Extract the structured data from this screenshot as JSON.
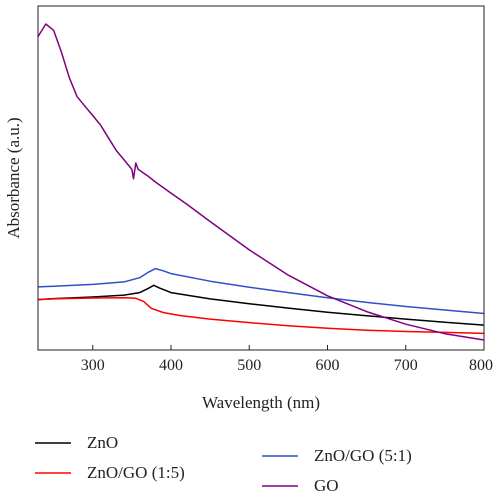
{
  "chart_data": {
    "type": "line",
    "title": "",
    "xlabel": "Wavelength (nm)",
    "ylabel": "Absorbance (a.u.)",
    "xlim": [
      230,
      800
    ],
    "ylim": [
      0,
      1
    ],
    "x_ticks": [
      300,
      400,
      500,
      600,
      700,
      800
    ],
    "x_tick_labels": [
      "300",
      "400",
      "500",
      "600",
      "700",
      "800"
    ],
    "y_ticks_labeled": false,
    "grid": false,
    "legend_position": "bottom",
    "series": [
      {
        "name": "ZnO",
        "color": "#000000",
        "x": [
          230,
          250,
          300,
          340,
          360,
          370,
          378,
          385,
          400,
          450,
          500,
          550,
          600,
          650,
          700,
          750,
          800
        ],
        "y": [
          0.128,
          0.131,
          0.136,
          0.142,
          0.15,
          0.162,
          0.173,
          0.165,
          0.15,
          0.13,
          0.115,
          0.101,
          0.088,
          0.077,
          0.066,
          0.056,
          0.047
        ]
      },
      {
        "name": "ZnO/GO (1:5)",
        "color": "#ff0000",
        "x": [
          230,
          250,
          300,
          340,
          355,
          365,
          375,
          390,
          410,
          450,
          500,
          550,
          600,
          650,
          700,
          750,
          800
        ],
        "y": [
          0.128,
          0.13,
          0.133,
          0.134,
          0.132,
          0.122,
          0.1,
          0.087,
          0.078,
          0.066,
          0.055,
          0.045,
          0.037,
          0.031,
          0.027,
          0.024,
          0.021
        ]
      },
      {
        "name": "ZnO/GO (5:1)",
        "color": "#3050c8",
        "x": [
          230,
          250,
          300,
          340,
          360,
          370,
          380,
          390,
          400,
          450,
          500,
          550,
          600,
          650,
          700,
          750,
          800
        ],
        "y": [
          0.168,
          0.17,
          0.176,
          0.184,
          0.197,
          0.213,
          0.226,
          0.219,
          0.21,
          0.186,
          0.167,
          0.15,
          0.134,
          0.119,
          0.106,
          0.095,
          0.084
        ]
      },
      {
        "name": "GO",
        "color": "#800080",
        "x": [
          230,
          240,
          250,
          260,
          270,
          280,
          290,
          300,
          310,
          320,
          330,
          340,
          350,
          352,
          355,
          358,
          370,
          380,
          400,
          420,
          450,
          500,
          550,
          600,
          650,
          700,
          750,
          800
        ],
        "y": [
          0.96,
          1.0,
          0.98,
          0.91,
          0.83,
          0.77,
          0.74,
          0.71,
          0.68,
          0.64,
          0.6,
          0.57,
          0.54,
          0.51,
          0.56,
          0.54,
          0.52,
          0.5,
          0.465,
          0.43,
          0.375,
          0.285,
          0.205,
          0.14,
          0.09,
          0.05,
          0.02,
          0.0
        ]
      }
    ]
  }
}
